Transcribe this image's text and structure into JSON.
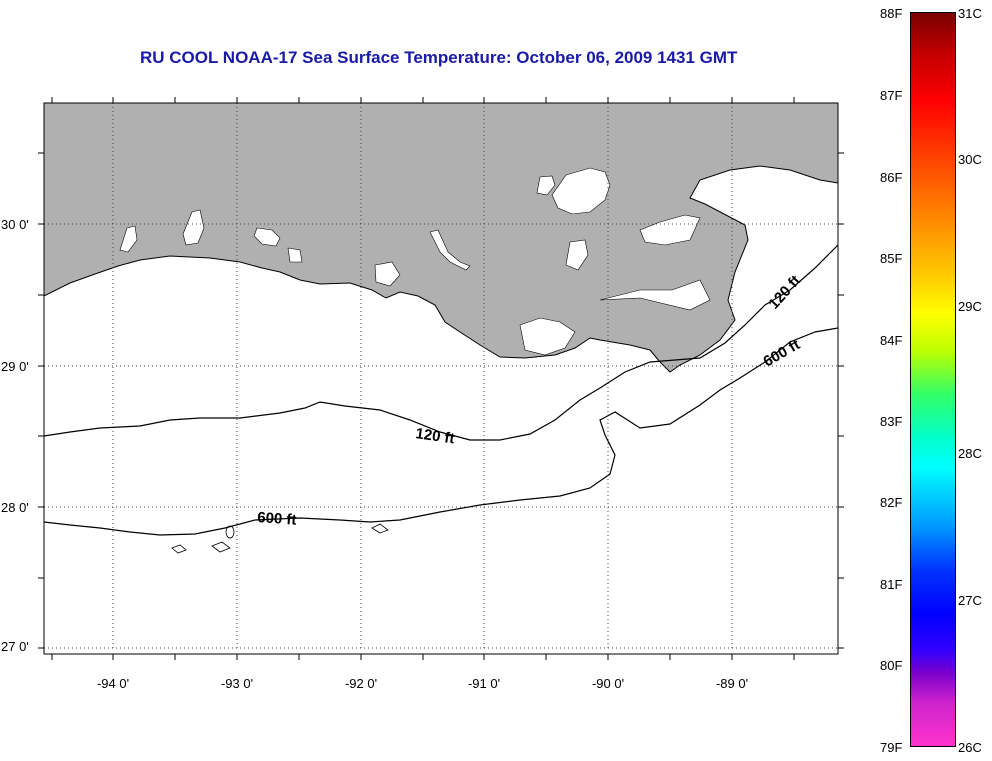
{
  "title": "RU COOL  NOAA-17  Sea Surface Temperature:  October 06, 2009 1431 GMT",
  "map": {
    "lon_labels": [
      "-94 0'",
      "-93 0'",
      "-92 0'",
      "-91 0'",
      "-90 0'",
      "-89 0'"
    ],
    "lat_labels": [
      "30 0'",
      "29 0'",
      "28 0'",
      "27 0'"
    ],
    "contour_labels": {
      "c120_west": "120 ft",
      "c120_east": "120 ft",
      "c600_west": "600 ft",
      "c600_east": "600 ft"
    },
    "land_color": "#b0b0b0",
    "contour_color": "#000000"
  },
  "scale": {
    "fahrenheit": [
      "88F",
      "87F",
      "86F",
      "85F",
      "84F",
      "83F",
      "82F",
      "81F",
      "80F",
      "79F"
    ],
    "celsius": [
      "31C",
      "30C",
      "29C",
      "28C",
      "27C",
      "26C"
    ]
  }
}
